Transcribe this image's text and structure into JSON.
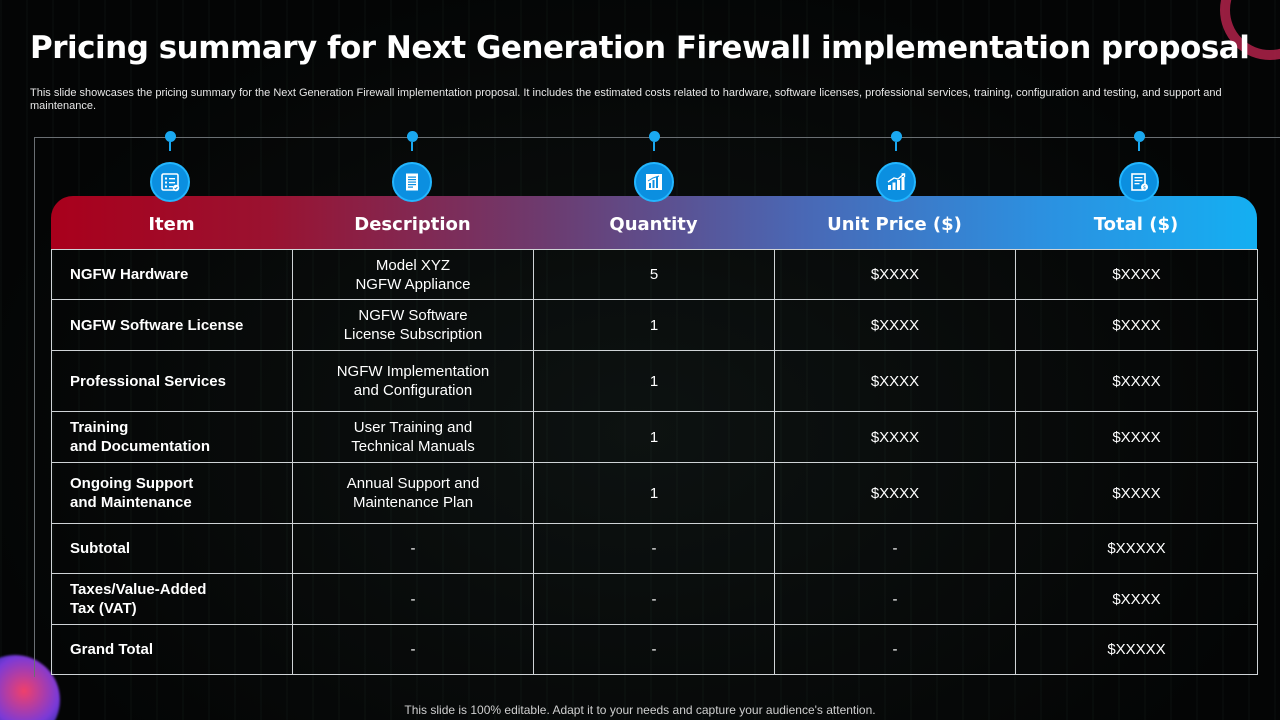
{
  "title": "Pricing summary for Next Generation Firewall implementation proposal",
  "subtitle": "This slide showcases the pricing summary for the Next Generation Firewall implementation proposal. It includes the estimated costs related to hardware, software licenses, professional services, training, configuration and testing, and support and maintenance.",
  "columns": [
    {
      "label": "Item",
      "icon": "checklist-icon"
    },
    {
      "label": "Description",
      "icon": "document-icon"
    },
    {
      "label": "Quantity",
      "icon": "bar-chart-report-icon"
    },
    {
      "label": "Unit Price ($)",
      "icon": "growth-chart-icon"
    },
    {
      "label": "Total ($)",
      "icon": "invoice-icon"
    }
  ],
  "rows": [
    {
      "item": "NGFW Hardware",
      "description": "Model XYZ\nNGFW Appliance",
      "quantity": "5",
      "unit_price": "$XXXX",
      "total": "$XXXX"
    },
    {
      "item": "NGFW Software License",
      "description": "NGFW Software\nLicense Subscription",
      "quantity": "1",
      "unit_price": "$XXXX",
      "total": "$XXXX"
    },
    {
      "item": "Professional Services",
      "description": "NGFW Implementation\nand Configuration",
      "quantity": "1",
      "unit_price": "$XXXX",
      "total": "$XXXX"
    },
    {
      "item": "Training\nand Documentation",
      "description": "User Training and\nTechnical Manuals",
      "quantity": "1",
      "unit_price": "$XXXX",
      "total": "$XXXX"
    },
    {
      "item": "Ongoing Support\nand Maintenance",
      "description": "Annual Support and\nMaintenance Plan",
      "quantity": "1",
      "unit_price": "$XXXX",
      "total": "$XXXX"
    },
    {
      "item": "Subtotal",
      "description": "-",
      "quantity": "-",
      "unit_price": "-",
      "total": "$XXXXX"
    },
    {
      "item": "Taxes/Value-Added\nTax (VAT)",
      "description": "-",
      "quantity": "-",
      "unit_price": "-",
      "total": "$XXXX"
    },
    {
      "item": "Grand Total",
      "description": "-",
      "quantity": "-",
      "unit_price": "-",
      "total": "$XXXXX"
    }
  ],
  "footer": "This slide is 100% editable. Adapt it to your needs and capture your audience's attention.",
  "colors": {
    "accent_blue": "#0b8fe0",
    "header_red": "#a9001c",
    "header_cyan": "#14aff2"
  }
}
